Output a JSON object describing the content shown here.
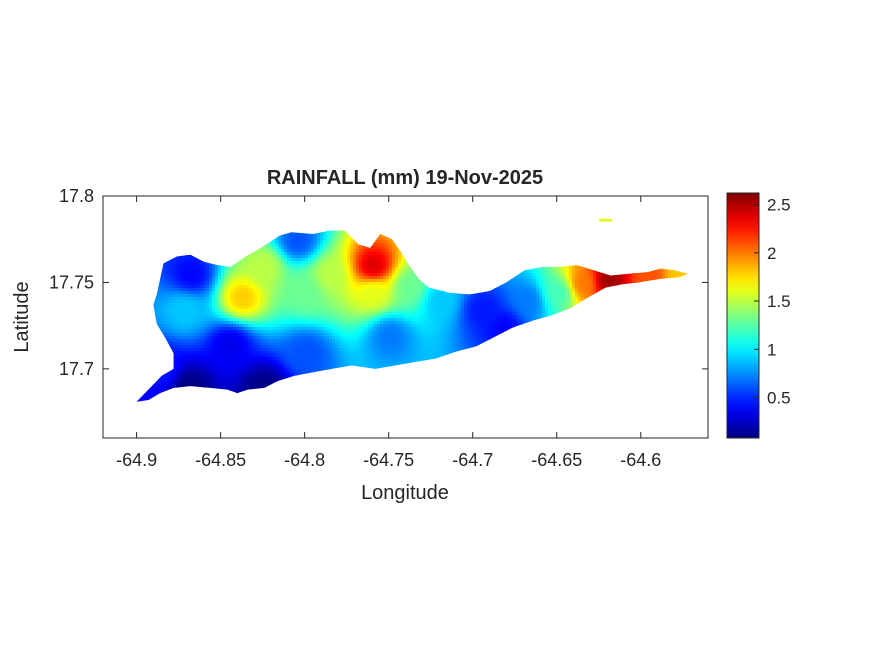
{
  "chart_data": {
    "type": "heatmap",
    "title": "RAINFALL (mm) 19-Nov-2025",
    "xlabel": "Longitude",
    "ylabel": "Latitude",
    "xlim": [
      -64.92,
      -64.56
    ],
    "ylim": [
      17.66,
      17.8
    ],
    "x_ticks": [
      -64.9,
      -64.85,
      -64.8,
      -64.75,
      -64.7,
      -64.65,
      -64.6
    ],
    "x_tick_labels": [
      "-64.9",
      "-64.85",
      "-64.8",
      "-64.75",
      "-64.7",
      "-64.65",
      "-64.6"
    ],
    "y_ticks": [
      17.7,
      17.75,
      17.8
    ],
    "y_tick_labels": [
      "17.7",
      "17.75",
      "17.8"
    ],
    "colorbar": {
      "colormap": "jet",
      "min": 0.08,
      "max": 2.62,
      "ticks": [
        0.5,
        1,
        1.5,
        2,
        2.5
      ],
      "tick_labels": [
        "0.5",
        "1",
        "1.5",
        "2",
        "2.5"
      ]
    },
    "grid": false,
    "island_outline": [
      [
        -64.9,
        17.681
      ],
      [
        -64.893,
        17.688
      ],
      [
        -64.885,
        17.696
      ],
      [
        -64.878,
        17.7
      ],
      [
        -64.878,
        17.709
      ],
      [
        -64.883,
        17.718
      ],
      [
        -64.888,
        17.726
      ],
      [
        -64.89,
        17.737
      ],
      [
        -64.888,
        17.743
      ],
      [
        -64.884,
        17.761
      ],
      [
        -64.876,
        17.765
      ],
      [
        -64.868,
        17.766
      ],
      [
        -64.86,
        17.762
      ],
      [
        -64.852,
        17.76
      ],
      [
        -64.844,
        17.759
      ],
      [
        -64.835,
        17.765
      ],
      [
        -64.826,
        17.77
      ],
      [
        -64.815,
        17.777
      ],
      [
        -64.808,
        17.779
      ],
      [
        -64.795,
        17.778
      ],
      [
        -64.785,
        17.78
      ],
      [
        -64.776,
        17.78
      ],
      [
        -64.772,
        17.776
      ],
      [
        -64.768,
        17.772
      ],
      [
        -64.761,
        17.77
      ],
      [
        -64.758,
        17.774
      ],
      [
        -64.755,
        17.778
      ],
      [
        -64.748,
        17.775
      ],
      [
        -64.743,
        17.768
      ],
      [
        -64.738,
        17.76
      ],
      [
        -64.732,
        17.752
      ],
      [
        -64.726,
        17.747
      ],
      [
        -64.714,
        17.744
      ],
      [
        -64.702,
        17.743
      ],
      [
        -64.69,
        17.745
      ],
      [
        -64.68,
        17.75
      ],
      [
        -64.669,
        17.757
      ],
      [
        -64.658,
        17.759
      ],
      [
        -64.648,
        17.759
      ],
      [
        -64.638,
        17.76
      ],
      [
        -64.628,
        17.757
      ],
      [
        -64.618,
        17.754
      ],
      [
        -64.607,
        17.755
      ],
      [
        -64.596,
        17.756
      ],
      [
        -64.588,
        17.758
      ],
      [
        -64.58,
        17.757
      ],
      [
        -64.572,
        17.755
      ],
      [
        -64.577,
        17.753
      ],
      [
        -64.589,
        17.752
      ],
      [
        -64.601,
        17.75
      ],
      [
        -64.611,
        17.749
      ],
      [
        -64.621,
        17.747
      ],
      [
        -64.632,
        17.741
      ],
      [
        -64.642,
        17.735
      ],
      [
        -64.653,
        17.731
      ],
      [
        -64.664,
        17.728
      ],
      [
        -64.676,
        17.724
      ],
      [
        -64.688,
        17.718
      ],
      [
        -64.698,
        17.713
      ],
      [
        -64.71,
        17.71
      ],
      [
        -64.722,
        17.706
      ],
      [
        -64.734,
        17.704
      ],
      [
        -64.746,
        17.702
      ],
      [
        -64.758,
        17.7
      ],
      [
        -64.772,
        17.702
      ],
      [
        -64.784,
        17.7
      ],
      [
        -64.795,
        17.698
      ],
      [
        -64.806,
        17.696
      ],
      [
        -64.816,
        17.693
      ],
      [
        -64.824,
        17.689
      ],
      [
        -64.834,
        17.688
      ],
      [
        -64.84,
        17.686
      ],
      [
        -64.846,
        17.688
      ],
      [
        -64.856,
        17.689
      ],
      [
        -64.868,
        17.69
      ],
      [
        -64.878,
        17.689
      ],
      [
        -64.886,
        17.686
      ],
      [
        -64.893,
        17.682
      ]
    ],
    "small_islet": [
      [
        -64.624,
        17.786
      ],
      [
        -64.618,
        17.786
      ]
    ],
    "rainfall_centers": [
      {
        "lon": -64.87,
        "lat": 17.69,
        "value": 0.08
      },
      {
        "lon": -64.825,
        "lat": 17.69,
        "value": 0.1
      },
      {
        "lon": -64.885,
        "lat": 17.7,
        "value": 0.45
      },
      {
        "lon": -64.868,
        "lat": 17.755,
        "value": 0.4
      },
      {
        "lon": -64.872,
        "lat": 17.735,
        "value": 0.9
      },
      {
        "lon": -64.845,
        "lat": 17.715,
        "value": 0.35
      },
      {
        "lon": -64.8,
        "lat": 17.71,
        "value": 0.6
      },
      {
        "lon": -64.75,
        "lat": 17.72,
        "value": 0.7
      },
      {
        "lon": -64.805,
        "lat": 17.775,
        "value": 0.6
      },
      {
        "lon": -64.838,
        "lat": 17.742,
        "value": 1.8
      },
      {
        "lon": -64.825,
        "lat": 17.76,
        "value": 1.5
      },
      {
        "lon": -64.8,
        "lat": 17.745,
        "value": 1.3
      },
      {
        "lon": -64.785,
        "lat": 17.755,
        "value": 1.5
      },
      {
        "lon": -64.76,
        "lat": 17.76,
        "value": 2.4
      },
      {
        "lon": -64.76,
        "lat": 17.745,
        "value": 1.6
      },
      {
        "lon": -64.738,
        "lat": 17.748,
        "value": 1.3
      },
      {
        "lon": -64.72,
        "lat": 17.74,
        "value": 0.9
      },
      {
        "lon": -64.695,
        "lat": 17.735,
        "value": 0.45
      },
      {
        "lon": -64.682,
        "lat": 17.725,
        "value": 0.4
      },
      {
        "lon": -64.668,
        "lat": 17.74,
        "value": 0.7
      },
      {
        "lon": -64.65,
        "lat": 17.745,
        "value": 1.2
      },
      {
        "lon": -64.635,
        "lat": 17.75,
        "value": 2.0
      },
      {
        "lon": -64.62,
        "lat": 17.752,
        "value": 2.55
      },
      {
        "lon": -64.595,
        "lat": 17.753,
        "value": 2.1
      },
      {
        "lon": -64.578,
        "lat": 17.754,
        "value": 1.8
      }
    ]
  }
}
